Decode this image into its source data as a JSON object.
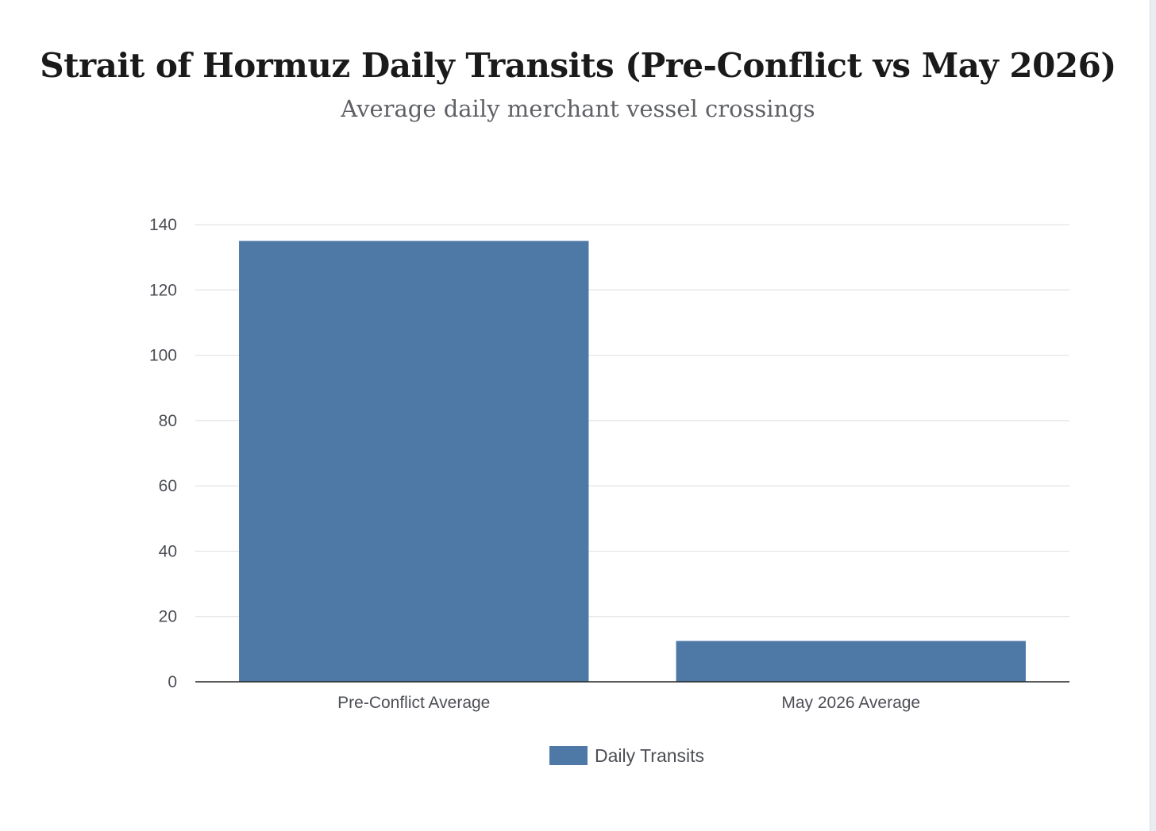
{
  "chart_data": {
    "type": "bar",
    "title": "Strait of Hormuz Daily Transits (Pre-Conflict vs May 2026)",
    "subtitle": "Average daily merchant vessel crossings",
    "categories": [
      "Pre-Conflict Average",
      "May 2026 Average"
    ],
    "series": [
      {
        "name": "Daily Transits",
        "values": [
          135,
          12.5
        ],
        "color": "#4e79a7"
      }
    ],
    "xlabel": "",
    "ylabel": "",
    "ylim": [
      0,
      140
    ],
    "yticks": [
      0,
      20,
      40,
      60,
      80,
      100,
      120,
      140
    ],
    "grid": true,
    "legend_position": "bottom"
  }
}
